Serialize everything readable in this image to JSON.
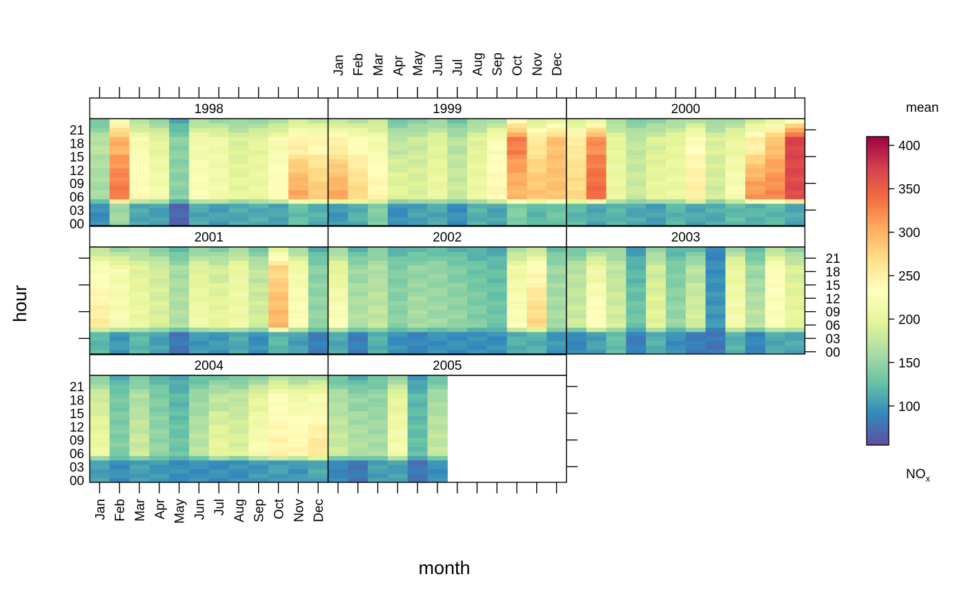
{
  "chart_data": {
    "type": "heatmap",
    "xlabel": "month",
    "ylabel": "hour",
    "months": [
      "Jan",
      "Feb",
      "Mar",
      "Apr",
      "May",
      "Jun",
      "Jul",
      "Aug",
      "Sep",
      "Oct",
      "Nov",
      "Dec"
    ],
    "hour_ticks": [
      "00",
      "03",
      "06",
      "09",
      "12",
      "15",
      "18",
      "21"
    ],
    "hours_range": [
      0,
      23
    ],
    "legend": {
      "title": "mean",
      "label_main": "NO",
      "label_sub": "x",
      "range": [
        55,
        410
      ],
      "ticks": [
        "100",
        "150",
        "200",
        "250",
        "300",
        "350",
        "400"
      ],
      "colors": [
        "#5E4FA2",
        "#3288BD",
        "#66C2A5",
        "#ABDDA4",
        "#E6F598",
        "#FFFFBF",
        "#FEE08B",
        "#FDAE61",
        "#F46D43",
        "#D53E4F",
        "#9E0142"
      ]
    },
    "panels": [
      {
        "label": "1998",
        "months_with_data": 12,
        "night": [
          95,
          155,
          110,
          105,
          70,
          110,
          105,
          110,
          112,
          108,
          125,
          115
        ],
        "day": [
          160,
          330,
          235,
          215,
          145,
          225,
          215,
          200,
          205,
          230,
          300,
          280
        ],
        "evening": [
          170,
          300,
          220,
          200,
          145,
          215,
          210,
          190,
          200,
          220,
          250,
          240
        ]
      },
      {
        "label": "1999",
        "months_with_data": 12,
        "night": [
          100,
          115,
          140,
          95,
          105,
          110,
          95,
          115,
          108,
          140,
          120,
          130
        ],
        "day": [
          300,
          270,
          240,
          195,
          190,
          205,
          180,
          205,
          240,
          300,
          285,
          290
        ],
        "evening": [
          250,
          230,
          215,
          175,
          180,
          195,
          170,
          195,
          225,
          330,
          260,
          290
        ]
      },
      {
        "label": "2000",
        "months_with_data": 12,
        "night": [
          120,
          110,
          118,
          110,
          105,
          118,
          110,
          112,
          122,
          118,
          120,
          110
        ],
        "day": [
          270,
          340,
          205,
          180,
          200,
          205,
          250,
          185,
          220,
          310,
          320,
          365
        ],
        "evening": [
          255,
          320,
          200,
          175,
          190,
          200,
          235,
          190,
          205,
          250,
          290,
          370
        ]
      },
      {
        "label": "2001",
        "months_with_data": 12,
        "night": [
          120,
          100,
          120,
          105,
          80,
          100,
          100,
          110,
          95,
          120,
          105,
          85
        ],
        "day": [
          250,
          220,
          205,
          190,
          165,
          210,
          200,
          210,
          185,
          295,
          225,
          150
        ],
        "evening": [
          225,
          215,
          195,
          185,
          160,
          195,
          185,
          205,
          175,
          275,
          215,
          145
        ]
      },
      {
        "label": "2002",
        "months_with_data": 12,
        "night": [
          110,
          85,
          115,
          95,
          90,
          95,
          95,
          95,
          95,
          115,
          115,
          100
        ],
        "day": [
          225,
          165,
          175,
          145,
          160,
          155,
          150,
          140,
          130,
          225,
          270,
          160
        ],
        "evening": [
          200,
          155,
          165,
          140,
          150,
          150,
          140,
          130,
          125,
          210,
          240,
          155
        ]
      },
      {
        "label": "2003",
        "months_with_data": 12,
        "night": [
          90,
          105,
          125,
          85,
          115,
          95,
          85,
          80,
          115,
          90,
          110,
          110
        ],
        "day": [
          180,
          230,
          185,
          130,
          195,
          150,
          185,
          100,
          215,
          170,
          225,
          200
        ],
        "evening": [
          170,
          210,
          175,
          120,
          185,
          140,
          170,
          95,
          205,
          155,
          230,
          190
        ]
      },
      {
        "label": "2004",
        "months_with_data": 12,
        "night": [
          105,
          95,
          105,
          100,
          95,
          95,
          95,
          95,
          100,
          105,
          100,
          110
        ],
        "day": [
          205,
          140,
          180,
          150,
          130,
          170,
          200,
          190,
          220,
          245,
          240,
          255
        ],
        "evening": [
          185,
          135,
          165,
          140,
          120,
          155,
          175,
          175,
          200,
          230,
          215,
          220
        ]
      },
      {
        "label": "2005",
        "months_with_data": 6,
        "night": [
          90,
          80,
          105,
          105,
          80,
          95
        ],
        "day": [
          180,
          165,
          160,
          215,
          125,
          175
        ],
        "evening": [
          165,
          150,
          150,
          200,
          120,
          160
        ]
      }
    ]
  }
}
